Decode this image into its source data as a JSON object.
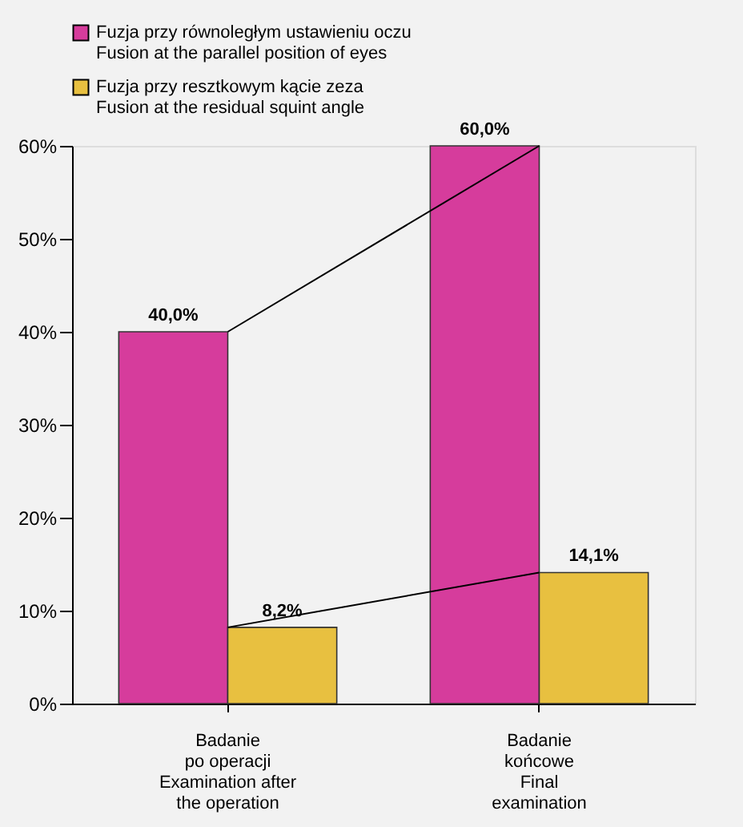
{
  "chart_data": {
    "type": "bar",
    "categories": [
      "Badanie\npo operacji\nExamination after\nthe operation",
      "Badanie\nkońcowe\nFinal\nexamination"
    ],
    "series": [
      {
        "name": "Fuzja przy równoległym ustawieniu oczu\nFusion at the parallel position of eyes",
        "color": "#d63c9c",
        "values": [
          40.0,
          60.0
        ],
        "value_labels": [
          "40,0%",
          "60,0%"
        ]
      },
      {
        "name": "Fuzja przy resztkowym kącie zeza\nFusion at the residual squint angle",
        "color": "#e8c040",
        "values": [
          8.2,
          14.1
        ],
        "value_labels": [
          "8,2%",
          "14,1%"
        ]
      },
      {
        "type": "line",
        "color": "#000000",
        "values": [
          40.0,
          60.0
        ]
      },
      {
        "type": "line",
        "color": "#000000",
        "values": [
          8.2,
          14.1
        ]
      }
    ],
    "ylim": [
      0,
      60
    ],
    "yticks": [
      {
        "value": 0,
        "label": "0%"
      },
      {
        "value": 10,
        "label": "10%"
      },
      {
        "value": 20,
        "label": "20%"
      },
      {
        "value": 30,
        "label": "30%"
      },
      {
        "value": 40,
        "label": "40%"
      },
      {
        "value": 50,
        "label": "50%"
      },
      {
        "value": 60,
        "label": "60%"
      }
    ],
    "grid": false,
    "legend": "top left"
  }
}
